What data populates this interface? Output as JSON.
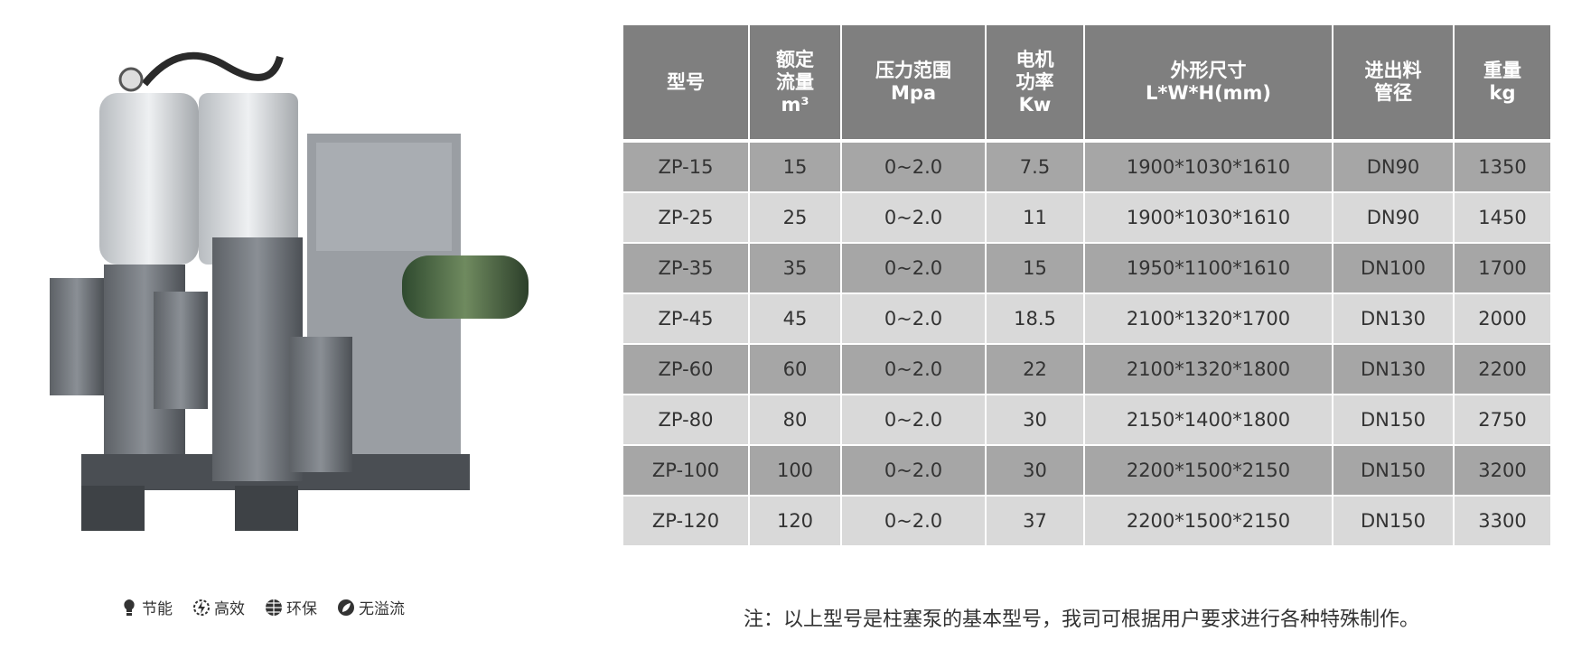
{
  "colors": {
    "header_bg": "#7f7f7f",
    "row_odd": "#a6a6a6",
    "row_even": "#d9d9d9",
    "header_text": "#ffffff"
  },
  "features": [
    {
      "icon": "lightbulb-icon",
      "label": "节能"
    },
    {
      "icon": "lightning-gear-icon",
      "label": "高效"
    },
    {
      "icon": "globe-icon",
      "label": "环保"
    },
    {
      "icon": "leaf-circle-icon",
      "label": "无溢流"
    }
  ],
  "table": {
    "headers": [
      [
        "型号"
      ],
      [
        "额定",
        "流量",
        "m³"
      ],
      [
        "压力范围",
        "Mpa"
      ],
      [
        "电机",
        "功率",
        "Kw"
      ],
      [
        "外形尺寸",
        "L*W*H(mm)"
      ],
      [
        "进出料",
        "管径"
      ],
      [
        "重量",
        "kg"
      ]
    ],
    "rows": [
      [
        "ZP-15",
        "15",
        "0~2.0",
        "7.5",
        "1900*1030*1610",
        "DN90",
        "1350"
      ],
      [
        "ZP-25",
        "25",
        "0~2.0",
        "11",
        "1900*1030*1610",
        "DN90",
        "1450"
      ],
      [
        "ZP-35",
        "35",
        "0~2.0",
        "15",
        "1950*1100*1610",
        "DN100",
        "1700"
      ],
      [
        "ZP-45",
        "45",
        "0~2.0",
        "18.5",
        "2100*1320*1700",
        "DN130",
        "2000"
      ],
      [
        "ZP-60",
        "60",
        "0~2.0",
        "22",
        "2100*1320*1800",
        "DN130",
        "2200"
      ],
      [
        "ZP-80",
        "80",
        "0~2.0",
        "30",
        "2150*1400*1800",
        "DN150",
        "2750"
      ],
      [
        "ZP-100",
        "100",
        "0~2.0",
        "30",
        "2200*1500*2150",
        "DN150",
        "3200"
      ],
      [
        "ZP-120",
        "120",
        "0~2.0",
        "37",
        "2200*1500*2150",
        "DN150",
        "3300"
      ]
    ]
  },
  "note": "注：以上型号是柱塞泵的基本型号，我司可根据用户要求进行各种特殊制作。"
}
